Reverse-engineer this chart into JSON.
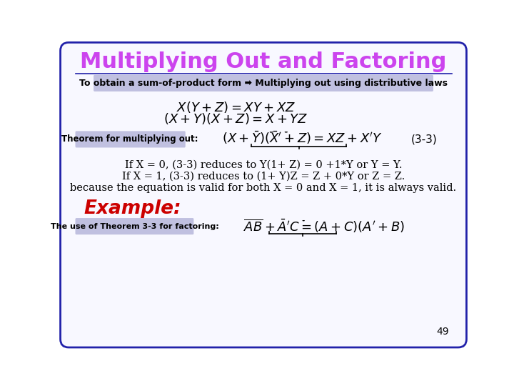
{
  "title": "Multiplying Out and Factoring",
  "title_color": "#cc44ee",
  "bg_color": "#f8f8ff",
  "slide_bg": "#ffffff",
  "border_color": "#2222aa",
  "subtitle_box_color": "#c0c0e0",
  "subtitle_text": "To obtain a sum-of-product form ➡ Multiplying out using distributive laws",
  "theorem_box_color": "#c0c0e0",
  "theorem_label": "Theorem for multiplying out:",
  "theorem_num": "(3-3)",
  "line1": "If X = 0, (3-3) reduces to Y(1+ Z) = 0 +1*Y or Y = Y.",
  "line2": "If X = 1, (3-3) reduces to (1+ Y)Z = Z + 0*Y or Z = Z.",
  "line3": "because the equation is valid for both X = 0 and X = 1, it is always valid.",
  "example_label": "Example:",
  "example_color": "#cc0000",
  "fact_label": "The use of Theorem 3-3 for factoring:",
  "page_num": "49"
}
